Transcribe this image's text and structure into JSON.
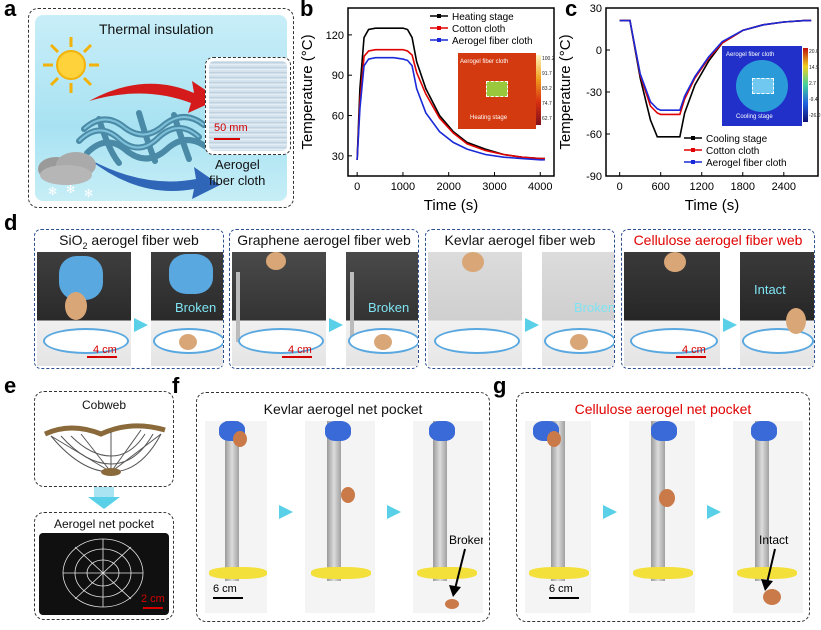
{
  "panel_letters": {
    "a": "a",
    "b": "b",
    "c": "c",
    "d": "d",
    "e": "e",
    "f": "f",
    "g": "g"
  },
  "panel_a": {
    "title": "Thermal insulation",
    "scale_label": "50 mm",
    "inset_caption_line1": "Aerogel",
    "inset_caption_line2": "fiber cloth"
  },
  "panel_d": {
    "scale_label": "4 cm",
    "groups": [
      {
        "title_pre": "SiO",
        "title_sub": "2",
        "title_post": " aerogel fiber web",
        "result": "Broken",
        "color": "#000000"
      },
      {
        "title_pre": "Graphene aerogel fiber web",
        "title_sub": "",
        "title_post": "",
        "result": "Broken",
        "color": "#000000"
      },
      {
        "title_pre": "Kevlar aerogel fiber web",
        "title_sub": "",
        "title_post": "",
        "result": "Broken",
        "color": "#000000"
      },
      {
        "title_pre": "Cellulose aerogel fiber web",
        "title_sub": "",
        "title_post": "",
        "result": "Intact",
        "color": "#e00000"
      }
    ]
  },
  "panel_e": {
    "top_label": "Cobweb",
    "bottom_label": "Aerogel net pocket",
    "scale_label": "2 cm"
  },
  "panel_f": {
    "title": "Kevlar aerogel net pocket",
    "result": "Broken",
    "scale_label": "6 cm",
    "title_color": "#000000"
  },
  "panel_g": {
    "title": "Cellulose aerogel net pocket",
    "result": "Intact",
    "scale_label": "6 cm",
    "title_color": "#e00000"
  },
  "chart_data": [
    {
      "type": "line",
      "title": "",
      "xlabel": "Time (s)",
      "ylabel": "Temperature (°C)",
      "xlim": [
        -200,
        4300
      ],
      "ylim": [
        15,
        140
      ],
      "xticks": [
        0,
        1000,
        2000,
        3000,
        4000
      ],
      "yticks": [
        30,
        60,
        90,
        120
      ],
      "legend_position": "top-right",
      "series": [
        {
          "name": "Heating stage",
          "color": "#000000",
          "x": [
            0,
            60,
            150,
            250,
            400,
            600,
            800,
            1000,
            1100,
            1200,
            1300,
            1500,
            1800,
            2100,
            2400,
            2800,
            3200,
            3600,
            4000,
            4100
          ],
          "y": [
            27,
            80,
            118,
            124,
            125,
            125,
            125,
            125,
            124,
            118,
            100,
            80,
            60,
            48,
            40,
            35,
            31,
            29,
            28,
            28
          ]
        },
        {
          "name": "Cotton cloth",
          "color": "#e00000",
          "x": [
            0,
            60,
            150,
            250,
            400,
            600,
            800,
            1000,
            1100,
            1200,
            1300,
            1500,
            1800,
            2100,
            2400,
            2800,
            3200,
            3600,
            4000,
            4100
          ],
          "y": [
            27,
            70,
            104,
            108,
            109,
            109,
            109,
            109,
            108,
            105,
            92,
            76,
            58,
            47,
            39,
            34,
            31,
            29,
            28,
            28
          ]
        },
        {
          "name": "Aerogel fiber cloth",
          "color": "#1a2ad8",
          "x": [
            0,
            60,
            150,
            250,
            400,
            600,
            800,
            1000,
            1100,
            1200,
            1300,
            1500,
            1800,
            2100,
            2400,
            2800,
            3200,
            3600,
            4000,
            4100
          ],
          "y": [
            27,
            65,
            97,
            102,
            103,
            103,
            103,
            102,
            101,
            97,
            80,
            62,
            48,
            40,
            35,
            31,
            29,
            28,
            27,
            27
          ]
        }
      ]
    },
    {
      "type": "line",
      "title": "",
      "xlabel": "Time (s)",
      "ylabel": "Temperature (°C)",
      "xlim": [
        -200,
        2900
      ],
      "ylim": [
        -90,
        30
      ],
      "xticks": [
        0,
        600,
        1200,
        1800,
        2400
      ],
      "yticks": [
        -90,
        -60,
        -30,
        0,
        30
      ],
      "legend_position": "bottom-right",
      "series": [
        {
          "name": "Cooling stage",
          "color": "#000000",
          "x": [
            0,
            150,
            300,
            450,
            550,
            600,
            700,
            800,
            880,
            950,
            1100,
            1300,
            1500,
            1800,
            2100,
            2400,
            2700,
            2800
          ],
          "y": [
            21,
            21,
            -20,
            -50,
            -62,
            -62,
            -62,
            -62,
            -62,
            -45,
            -25,
            -8,
            5,
            14,
            18,
            20,
            21,
            21
          ]
        },
        {
          "name": "Cotton cloth",
          "color": "#e00000",
          "x": [
            0,
            150,
            300,
            450,
            550,
            600,
            700,
            800,
            880,
            950,
            1100,
            1300,
            1500,
            1800,
            2100,
            2400,
            2700,
            2800
          ],
          "y": [
            21,
            21,
            -18,
            -40,
            -45,
            -46,
            -46,
            -46,
            -46,
            -35,
            -20,
            -6,
            5,
            14,
            18,
            20,
            21,
            21
          ]
        },
        {
          "name": "Aerogel fiber cloth",
          "color": "#1a2ad8",
          "x": [
            0,
            150,
            300,
            450,
            550,
            600,
            700,
            800,
            880,
            950,
            1100,
            1300,
            1500,
            1800,
            2100,
            2400,
            2700,
            2800
          ],
          "y": [
            21,
            21,
            -17,
            -37,
            -42,
            -43,
            -43,
            -43,
            -43,
            -33,
            -19,
            -5,
            6,
            14,
            18,
            20,
            21,
            21
          ]
        }
      ]
    }
  ],
  "thermal_inset_b": {
    "label_top": "Aerogel fiber cloth",
    "label_bottom": "Heating stage",
    "cbar_ticks": [
      "100.2",
      "91.7",
      "83.2",
      "74.7",
      "62.7"
    ],
    "cbar_unit": "°C"
  },
  "thermal_inset_c": {
    "label_top": "Aerogel fiber cloth",
    "label_bottom": "Cooling stage",
    "cbar_ticks": [
      "20.0",
      "14.9",
      "2.7",
      "-9.4",
      "-26.0"
    ],
    "cbar_unit": "°C"
  }
}
